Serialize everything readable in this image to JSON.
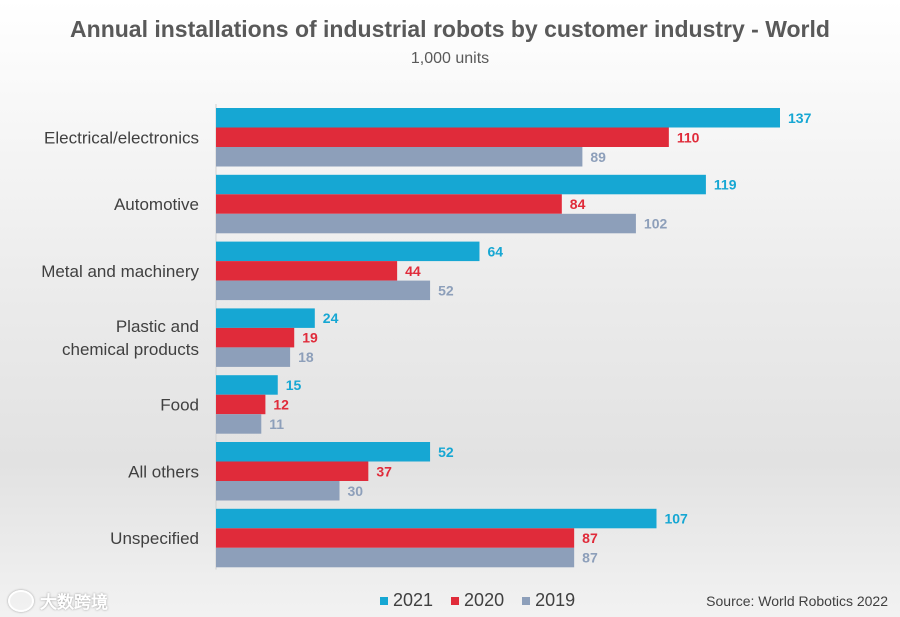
{
  "watermark": "大数跨境",
  "chart_data": {
    "type": "bar",
    "orientation": "horizontal",
    "title": "Annual installations of industrial robots by customer industry - World",
    "subtitle": "1,000 units",
    "categories": [
      "Electrical/electronics",
      "Automotive",
      "Metal and machinery",
      "Plastic and chemical products",
      "Food",
      "All others",
      "Unspecified"
    ],
    "series": [
      {
        "name": "2021",
        "color": "#16a7d3",
        "values": [
          137,
          119,
          64,
          24,
          15,
          52,
          107
        ]
      },
      {
        "name": "2020",
        "color": "#e02b3a",
        "values": [
          110,
          84,
          44,
          19,
          12,
          37,
          87
        ]
      },
      {
        "name": "2019",
        "color": "#8d9fba",
        "values": [
          89,
          102,
          52,
          18,
          11,
          30,
          87
        ]
      }
    ],
    "xlim": [
      0,
      137
    ],
    "legend_position": "bottom",
    "source": "Source: World Robotics 2022"
  }
}
